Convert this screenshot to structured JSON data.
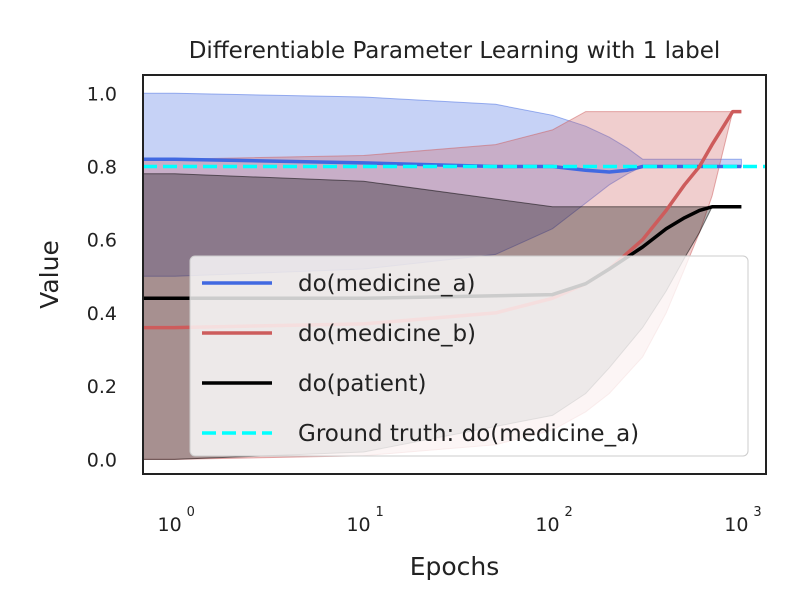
{
  "chart_data": {
    "type": "line",
    "title": "Differentiable Parameter Learning with 1 label",
    "xlabel": "Epochs",
    "ylabel": "Value",
    "x_scale": "log",
    "xlim": [
      0.68,
      1350
    ],
    "ylim": [
      -0.04,
      1.05
    ],
    "xticks": [
      {
        "base": "10",
        "exp": "0",
        "value": 1
      },
      {
        "base": "10",
        "exp": "1",
        "value": 10
      },
      {
        "base": "10",
        "exp": "2",
        "value": 100
      },
      {
        "base": "10",
        "exp": "3",
        "value": 1000
      }
    ],
    "yticks": [
      "0.0",
      "0.2",
      "0.4",
      "0.6",
      "0.8",
      "1.0"
    ],
    "grid": false,
    "legend_position": "lower-right",
    "series": [
      {
        "name": "do(medicine_a)",
        "color": "#4169e1",
        "style": "solid",
        "x": [
          0.68,
          1,
          10,
          50,
          100,
          150,
          200,
          250,
          300,
          500,
          1000
        ],
        "y": [
          0.82,
          0.82,
          0.81,
          0.8,
          0.8,
          0.79,
          0.785,
          0.79,
          0.8,
          0.8,
          0.8
        ],
        "band_upper": [
          1.0,
          1.0,
          0.99,
          0.97,
          0.94,
          0.91,
          0.88,
          0.85,
          0.82,
          0.82,
          0.82
        ],
        "band_lower": [
          0.5,
          0.5,
          0.52,
          0.56,
          0.63,
          0.7,
          0.75,
          0.78,
          0.8,
          0.8,
          0.8
        ]
      },
      {
        "name": "do(medicine_b)",
        "color": "#cd5c5c",
        "style": "solid",
        "x": [
          0.68,
          1,
          10,
          50,
          100,
          150,
          200,
          300,
          400,
          500,
          600,
          700,
          900,
          1000
        ],
        "y": [
          0.36,
          0.36,
          0.37,
          0.4,
          0.44,
          0.48,
          0.52,
          0.6,
          0.68,
          0.75,
          0.8,
          0.86,
          0.95,
          0.95
        ],
        "band_upper": [
          0.82,
          0.82,
          0.83,
          0.86,
          0.9,
          0.95,
          0.95,
          0.95,
          0.95,
          0.95,
          0.95,
          0.95,
          0.95,
          0.95
        ],
        "band_lower": [
          0.0,
          0.0,
          0.01,
          0.04,
          0.08,
          0.13,
          0.18,
          0.28,
          0.4,
          0.52,
          0.62,
          0.72,
          0.95,
          0.95
        ]
      },
      {
        "name": "do(patient)",
        "color": "#000000",
        "style": "solid",
        "x": [
          0.68,
          1,
          10,
          100,
          150,
          200,
          300,
          400,
          500,
          600,
          700,
          1000
        ],
        "y": [
          0.44,
          0.44,
          0.44,
          0.45,
          0.48,
          0.52,
          0.58,
          0.63,
          0.66,
          0.68,
          0.69,
          0.69
        ],
        "band_upper": [
          0.78,
          0.78,
          0.76,
          0.69,
          0.69,
          0.69,
          0.69,
          0.69,
          0.69,
          0.69,
          0.69,
          0.69
        ],
        "band_lower": [
          0.0,
          0.0,
          0.02,
          0.12,
          0.18,
          0.25,
          0.36,
          0.46,
          0.55,
          0.62,
          0.69,
          0.69
        ]
      },
      {
        "name": "Ground truth: do(medicine_a)",
        "color": "#00ffff",
        "style": "dashed",
        "x": [
          0.68,
          1350
        ],
        "y": [
          0.8,
          0.8
        ]
      }
    ]
  }
}
